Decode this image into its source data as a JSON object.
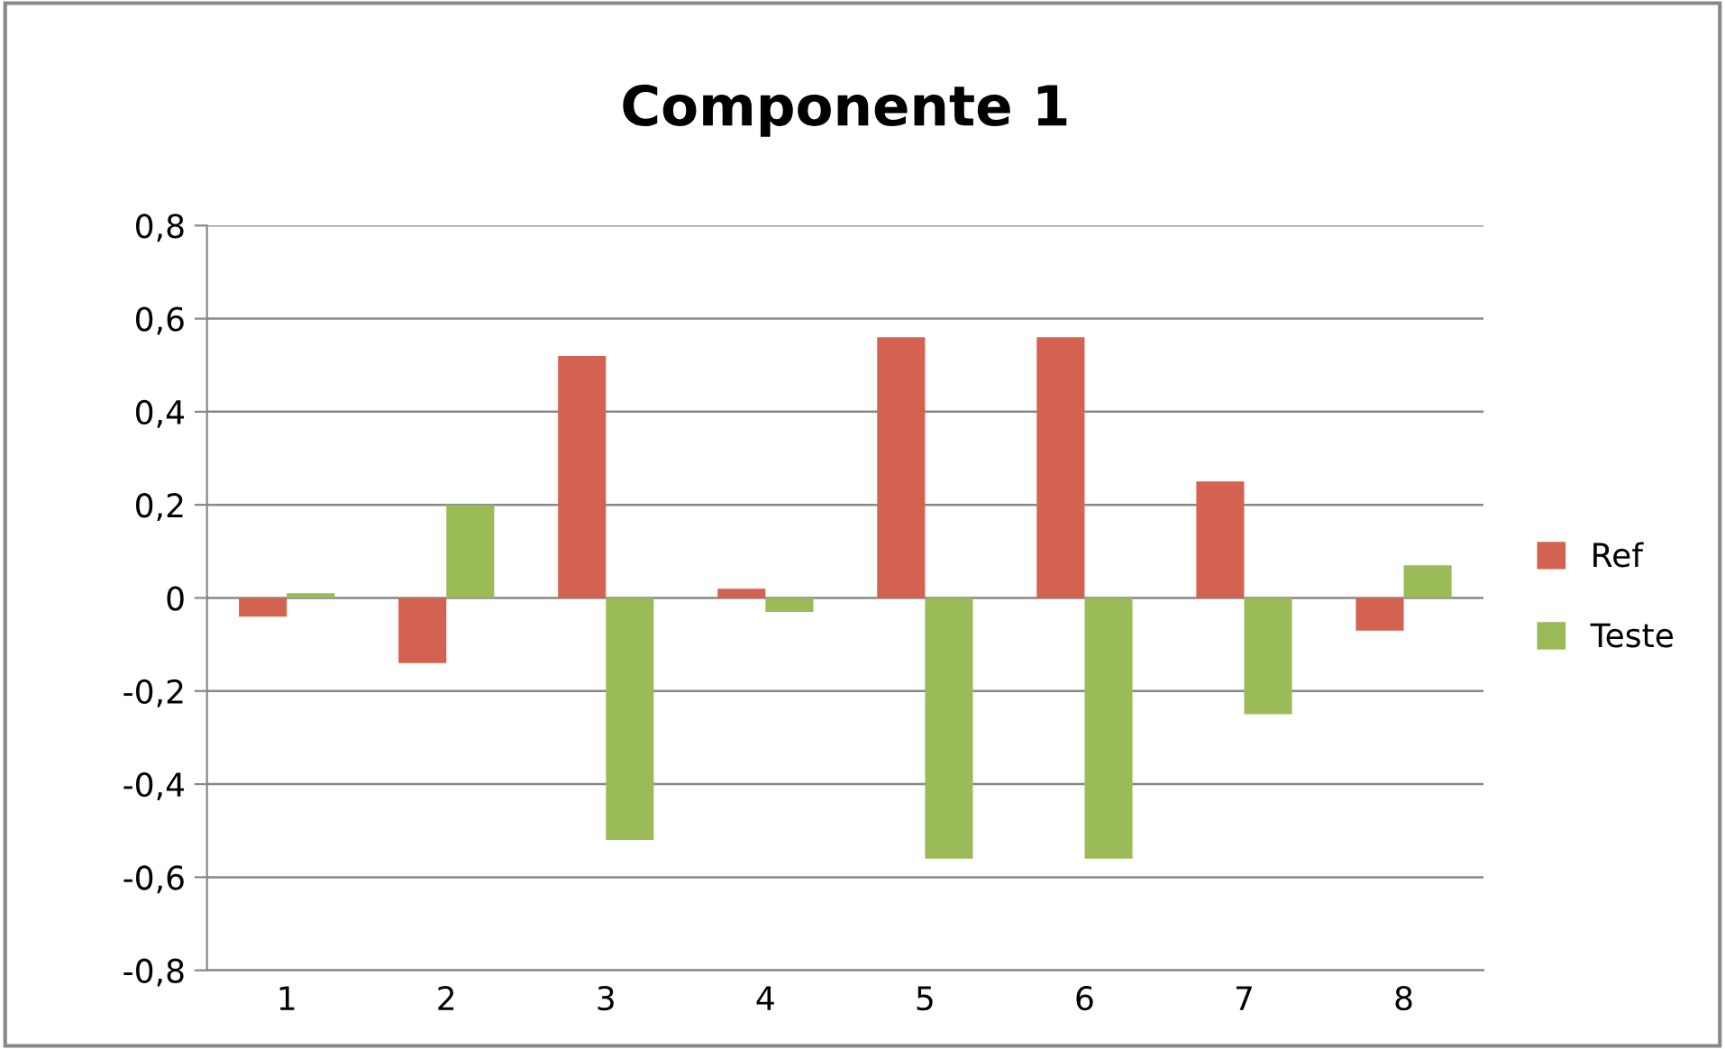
{
  "chart_data": {
    "type": "bar",
    "title": "Componente 1",
    "categories": [
      "1",
      "2",
      "3",
      "4",
      "5",
      "6",
      "7",
      "8"
    ],
    "series": [
      {
        "name": "Ref",
        "color": "#d46250",
        "values": [
          -0.04,
          -0.14,
          0.52,
          0.02,
          0.56,
          0.56,
          0.25,
          -0.07
        ]
      },
      {
        "name": "Teste",
        "color": "#9bbb59",
        "values": [
          0.01,
          0.2,
          -0.52,
          -0.03,
          -0.56,
          -0.56,
          -0.25,
          0.07
        ]
      }
    ],
    "ylim": [
      -0.8,
      0.8
    ],
    "yticks": [
      {
        "value": -0.8,
        "label": "-0,8"
      },
      {
        "value": -0.6,
        "label": "-0,6"
      },
      {
        "value": -0.4,
        "label": "-0,4"
      },
      {
        "value": -0.2,
        "label": "-0,2"
      },
      {
        "value": 0,
        "label": "0"
      },
      {
        "value": 0.2,
        "label": "0,2"
      },
      {
        "value": 0.4,
        "label": "0,4"
      },
      {
        "value": 0.6,
        "label": "0,6"
      },
      {
        "value": 0.8,
        "label": "0,8"
      }
    ],
    "grid": "y",
    "legend": "right"
  }
}
